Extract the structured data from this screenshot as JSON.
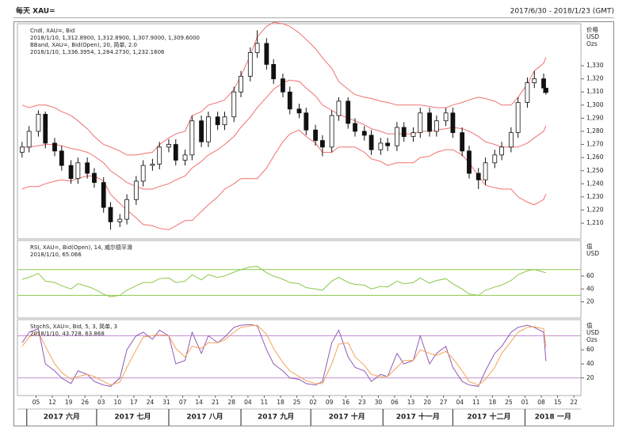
{
  "chart_data": [
    {
      "type": "candlestick",
      "title": "每天 XAU=",
      "date_range": "2017/6/30 - 2018/1/23 (GMT)",
      "legend": [
        {
          "text": "Cndl, XAU=, Bid",
          "color": "#222222"
        },
        {
          "text": "2018/1/10, 1,312.8900, 1,312.8900, 1,307.9000, 1,309.6000",
          "color": "#222222"
        },
        {
          "text": "BBand, XAU=, Bid(Open), 20, 简单, 2.0",
          "color": "#e03030"
        },
        {
          "text": "2018/1/10, 1,336.3954, 1,284.2730, 1,232.1606",
          "color": "#e03030"
        }
      ],
      "axis_units": [
        "价格",
        "USD",
        "Ozs"
      ],
      "xlim": [
        "2017-05-28",
        "2018-01-25"
      ],
      "xticks": [
        {
          "value": "2017-06-05",
          "label": "05"
        },
        {
          "value": "2017-06-12",
          "label": "12"
        },
        {
          "value": "2017-06-19",
          "label": "19"
        },
        {
          "value": "2017-06-26",
          "label": "26"
        },
        {
          "value": "2017-07-03",
          "label": "03"
        },
        {
          "value": "2017-07-10",
          "label": "10"
        },
        {
          "value": "2017-07-17",
          "label": "17"
        },
        {
          "value": "2017-07-24",
          "label": "24"
        },
        {
          "value": "2017-07-31",
          "label": "31"
        },
        {
          "value": "2017-08-07",
          "label": "07"
        },
        {
          "value": "2017-08-14",
          "label": "14"
        },
        {
          "value": "2017-08-21",
          "label": "21"
        },
        {
          "value": "2017-08-28",
          "label": "28"
        },
        {
          "value": "2017-09-04",
          "label": "04"
        },
        {
          "value": "2017-09-11",
          "label": "11"
        },
        {
          "value": "2017-09-18",
          "label": "18"
        },
        {
          "value": "2017-09-25",
          "label": "25"
        },
        {
          "value": "2017-10-02",
          "label": "02"
        },
        {
          "value": "2017-10-09",
          "label": "09"
        },
        {
          "value": "2017-10-16",
          "label": "16"
        },
        {
          "value": "2017-10-23",
          "label": "23"
        },
        {
          "value": "2017-10-30",
          "label": "30"
        },
        {
          "value": "2017-11-06",
          "label": "06"
        },
        {
          "value": "2017-11-13",
          "label": "13"
        },
        {
          "value": "2017-11-20",
          "label": "20"
        },
        {
          "value": "2017-11-27",
          "label": "27"
        },
        {
          "value": "2017-12-04",
          "label": "04"
        },
        {
          "value": "2017-12-11",
          "label": "11"
        },
        {
          "value": "2017-12-18",
          "label": "18"
        },
        {
          "value": "2017-12-25",
          "label": "25"
        },
        {
          "value": "2018-01-01",
          "label": "01"
        },
        {
          "value": "2018-01-08",
          "label": "08"
        },
        {
          "value": "2018-01-15",
          "label": "15"
        },
        {
          "value": "2018-01-22",
          "label": "22"
        }
      ],
      "month_labels": [
        {
          "value": "2017-06",
          "label": "2017 六月"
        },
        {
          "value": "2017-07",
          "label": "2017 七月"
        },
        {
          "value": "2017-08",
          "label": "2017 八月"
        },
        {
          "value": "2017-09",
          "label": "2017 九月"
        },
        {
          "value": "2017-10",
          "label": "2017 十月"
        },
        {
          "value": "2017-11",
          "label": "2017 十一月"
        },
        {
          "value": "2017-12",
          "label": "2017 十二月"
        },
        {
          "value": "2018-01",
          "label": "2018 一月"
        }
      ],
      "ylim": [
        1198,
        1362
      ],
      "yticks": [
        {
          "value": 1330,
          "label": "1,330"
        },
        {
          "value": 1320,
          "label": "1,320"
        },
        {
          "value": 1310,
          "label": "1,310"
        },
        {
          "value": 1300,
          "label": "1,300"
        },
        {
          "value": 1290,
          "label": "1,290"
        },
        {
          "value": 1280,
          "label": "1,280"
        },
        {
          "value": 1270,
          "label": "1,270"
        },
        {
          "value": 1260,
          "label": "1,260"
        },
        {
          "value": 1250,
          "label": "1,250"
        },
        {
          "value": 1240,
          "label": "1,240"
        },
        {
          "value": 1230,
          "label": "1,230"
        },
        {
          "value": 1220,
          "label": "1,220"
        },
        {
          "value": 1210,
          "label": "1,210"
        }
      ],
      "x": [
        "2017-05-30",
        "2017-06-02",
        "2017-06-06",
        "2017-06-09",
        "2017-06-13",
        "2017-06-16",
        "2017-06-20",
        "2017-06-23",
        "2017-06-27",
        "2017-06-30",
        "2017-07-04",
        "2017-07-07",
        "2017-07-11",
        "2017-07-14",
        "2017-07-18",
        "2017-07-21",
        "2017-07-25",
        "2017-07-28",
        "2017-08-01",
        "2017-08-04",
        "2017-08-08",
        "2017-08-11",
        "2017-08-15",
        "2017-08-18",
        "2017-08-22",
        "2017-08-25",
        "2017-08-29",
        "2017-09-01",
        "2017-09-05",
        "2017-09-08",
        "2017-09-12",
        "2017-09-15",
        "2017-09-19",
        "2017-09-22",
        "2017-09-26",
        "2017-09-29",
        "2017-10-03",
        "2017-10-06",
        "2017-10-10",
        "2017-10-13",
        "2017-10-17",
        "2017-10-20",
        "2017-10-24",
        "2017-10-27",
        "2017-10-31",
        "2017-11-03",
        "2017-11-07",
        "2017-11-10",
        "2017-11-14",
        "2017-11-17",
        "2017-11-21",
        "2017-11-24",
        "2017-11-28",
        "2017-12-01",
        "2017-12-05",
        "2017-12-08",
        "2017-12-12",
        "2017-12-15",
        "2017-12-19",
        "2017-12-22",
        "2017-12-26",
        "2017-12-29",
        "2018-01-02",
        "2018-01-05",
        "2018-01-09",
        "2018-01-10"
      ],
      "open": [
        1264,
        1268,
        1280,
        1293,
        1271,
        1265,
        1254,
        1244,
        1256,
        1248,
        1241,
        1222,
        1211,
        1213,
        1228,
        1242,
        1254,
        1255,
        1268,
        1270,
        1258,
        1262,
        1288,
        1272,
        1291,
        1285,
        1291,
        1310,
        1322,
        1340,
        1347,
        1331,
        1320,
        1310,
        1297,
        1294,
        1281,
        1273,
        1268,
        1292,
        1303,
        1286,
        1280,
        1277,
        1266,
        1271,
        1269,
        1283,
        1276,
        1279,
        1294,
        1280,
        1288,
        1294,
        1279,
        1265,
        1248,
        1243,
        1256,
        1262,
        1268,
        1279,
        1302,
        1317,
        1320,
        1312.89
      ],
      "high": [
        1272,
        1284,
        1296,
        1295,
        1275,
        1269,
        1258,
        1260,
        1260,
        1252,
        1245,
        1226,
        1217,
        1232,
        1246,
        1258,
        1259,
        1272,
        1274,
        1274,
        1266,
        1292,
        1292,
        1295,
        1295,
        1295,
        1314,
        1326,
        1344,
        1357,
        1351,
        1335,
        1324,
        1314,
        1301,
        1298,
        1285,
        1277,
        1296,
        1306,
        1306,
        1290,
        1284,
        1281,
        1275,
        1275,
        1287,
        1287,
        1283,
        1298,
        1298,
        1292,
        1298,
        1298,
        1283,
        1269,
        1252,
        1260,
        1266,
        1272,
        1283,
        1306,
        1321,
        1326,
        1324,
        1312.89
      ],
      "low": [
        1260,
        1264,
        1276,
        1267,
        1261,
        1250,
        1240,
        1240,
        1244,
        1237,
        1218,
        1205,
        1207,
        1209,
        1224,
        1238,
        1250,
        1251,
        1264,
        1254,
        1254,
        1258,
        1268,
        1268,
        1281,
        1281,
        1287,
        1306,
        1318,
        1336,
        1327,
        1316,
        1306,
        1293,
        1290,
        1277,
        1269,
        1261,
        1264,
        1288,
        1282,
        1276,
        1273,
        1262,
        1262,
        1265,
        1265,
        1272,
        1272,
        1275,
        1276,
        1276,
        1284,
        1275,
        1261,
        1244,
        1236,
        1239,
        1252,
        1258,
        1264,
        1275,
        1298,
        1313,
        1309,
        1307.9
      ],
      "close": [
        1268,
        1280,
        1293,
        1271,
        1265,
        1254,
        1244,
        1256,
        1248,
        1241,
        1222,
        1211,
        1213,
        1228,
        1242,
        1254,
        1255,
        1268,
        1270,
        1258,
        1262,
        1288,
        1272,
        1291,
        1285,
        1291,
        1310,
        1322,
        1340,
        1347,
        1331,
        1320,
        1310,
        1297,
        1294,
        1281,
        1273,
        1268,
        1292,
        1303,
        1286,
        1280,
        1277,
        1266,
        1271,
        1269,
        1283,
        1276,
        1279,
        1294,
        1280,
        1288,
        1294,
        1279,
        1265,
        1248,
        1243,
        1256,
        1262,
        1268,
        1279,
        1302,
        1317,
        1320,
        1313,
        1309.6
      ],
      "candle_color": "#111111",
      "series": [
        {
          "color": "#f07070",
          "values": [
            1300,
            1298,
            1300,
            1300,
            1298,
            1295,
            1292,
            1288,
            1282,
            1276,
            1270,
            1268,
            1265,
            1262,
            1262,
            1263,
            1264,
            1270,
            1275,
            1278,
            1280,
            1292,
            1295,
            1300,
            1302,
            1304,
            1312,
            1322,
            1338,
            1352,
            1360,
            1363,
            1362,
            1360,
            1355,
            1350,
            1343,
            1336,
            1328,
            1318,
            1312,
            1308,
            1306,
            1305,
            1303,
            1302,
            1300,
            1300,
            1300,
            1300,
            1299,
            1298,
            1298,
            1300,
            1302,
            1304,
            1306,
            1305,
            1303,
            1300,
            1300,
            1306,
            1316,
            1326,
            1332,
            1336.3954
          ]
        },
        {
          "color": "#f07070",
          "values": [
            1268,
            1268,
            1269,
            1270,
            1270,
            1269,
            1267,
            1266,
            1264,
            1261,
            1256,
            1250,
            1245,
            1241,
            1238,
            1236,
            1236,
            1238,
            1240,
            1243,
            1246,
            1252,
            1257,
            1262,
            1266,
            1270,
            1276,
            1283,
            1291,
            1298,
            1306,
            1312,
            1317,
            1319,
            1318,
            1313,
            1307,
            1300,
            1296,
            1293,
            1290,
            1288,
            1285,
            1282,
            1280,
            1278,
            1278,
            1278,
            1278,
            1280,
            1280,
            1281,
            1282,
            1283,
            1282,
            1280,
            1276,
            1272,
            1270,
            1268,
            1268,
            1268,
            1271,
            1275,
            1280,
            1284.273
          ]
        },
        {
          "color": "#f07070",
          "values": [
            1236,
            1238,
            1238,
            1240,
            1242,
            1243,
            1242,
            1244,
            1246,
            1246,
            1242,
            1232,
            1225,
            1220,
            1214,
            1209,
            1208,
            1206,
            1205,
            1208,
            1212,
            1212,
            1219,
            1224,
            1230,
            1236,
            1240,
            1244,
            1244,
            1244,
            1252,
            1261,
            1272,
            1278,
            1281,
            1276,
            1271,
            1264,
            1264,
            1268,
            1268,
            1268,
            1264,
            1259,
            1257,
            1254,
            1256,
            1256,
            1256,
            1260,
            1261,
            1264,
            1266,
            1266,
            1262,
            1256,
            1246,
            1239,
            1237,
            1236,
            1236,
            1230,
            1226,
            1224,
            1228,
            1232.1606
          ]
        }
      ]
    },
    {
      "type": "line",
      "legend": [
        {
          "text": "RSI, XAU=, Bid(Open), 14, 威尔德平滑",
          "color": "#6aa84f"
        },
        {
          "text": "2018/1/10, 65.066",
          "color": "#6aa84f"
        }
      ],
      "axis_units": [
        "值",
        "USD"
      ],
      "ylim": [
        -5,
        115
      ],
      "yticks": [
        60,
        40,
        20
      ],
      "reference_lines": [
        70,
        30
      ],
      "reference_color": "#8cc84b",
      "series": [
        {
          "color": "#8cc84b",
          "values": [
            55,
            58,
            64,
            52,
            50,
            45,
            40,
            48,
            44,
            40,
            32,
            28,
            30,
            38,
            45,
            50,
            50,
            56,
            57,
            50,
            52,
            62,
            54,
            62,
            58,
            60,
            66,
            70,
            74,
            75,
            65,
            60,
            55,
            50,
            48,
            42,
            40,
            38,
            52,
            58,
            50,
            47,
            46,
            40,
            44,
            43,
            52,
            48,
            50,
            57,
            49,
            53,
            56,
            48,
            40,
            32,
            30,
            38,
            43,
            46,
            53,
            62,
            68,
            70,
            66,
            65.066
          ]
        }
      ]
    },
    {
      "type": "line",
      "legend": [
        {
          "text": "StochS, XAU=, Bid, 5, 3, 简单, 3",
          "color": "#8e5bb5"
        },
        {
          "text": "2018/1/10, 43.728, 63.868",
          "color": "#8e5bb5"
        }
      ],
      "axis_units": [
        "值",
        "USD",
        "Ozs"
      ],
      "ylim": [
        -5,
        103
      ],
      "yticks": [
        60,
        40,
        20
      ],
      "reference_lines": [
        80,
        20
      ],
      "reference_color": "#c58fd0",
      "series": [
        {
          "color": "#8e5bb5",
          "values": [
            70,
            85,
            90,
            40,
            30,
            20,
            12,
            30,
            25,
            15,
            10,
            8,
            20,
            60,
            80,
            85,
            75,
            88,
            80,
            40,
            45,
            85,
            55,
            80,
            70,
            78,
            92,
            95,
            96,
            94,
            60,
            40,
            30,
            20,
            18,
            12,
            10,
            15,
            70,
            88,
            50,
            35,
            30,
            15,
            25,
            22,
            55,
            40,
            45,
            80,
            40,
            55,
            65,
            35,
            15,
            10,
            8,
            30,
            55,
            65,
            85,
            92,
            95,
            92,
            85,
            43.728
          ]
        },
        {
          "color": "#f3a25a",
          "values": [
            65,
            78,
            85,
            65,
            40,
            28,
            18,
            22,
            25,
            22,
            15,
            10,
            14,
            35,
            60,
            78,
            80,
            82,
            80,
            62,
            50,
            65,
            62,
            70,
            70,
            74,
            85,
            92,
            94,
            95,
            82,
            62,
            42,
            30,
            22,
            16,
            12,
            12,
            40,
            68,
            70,
            50,
            38,
            25,
            22,
            22,
            35,
            45,
            45,
            60,
            55,
            52,
            58,
            48,
            30,
            15,
            10,
            18,
            35,
            55,
            72,
            85,
            92,
            93,
            90,
            63.868
          ]
        }
      ]
    }
  ]
}
